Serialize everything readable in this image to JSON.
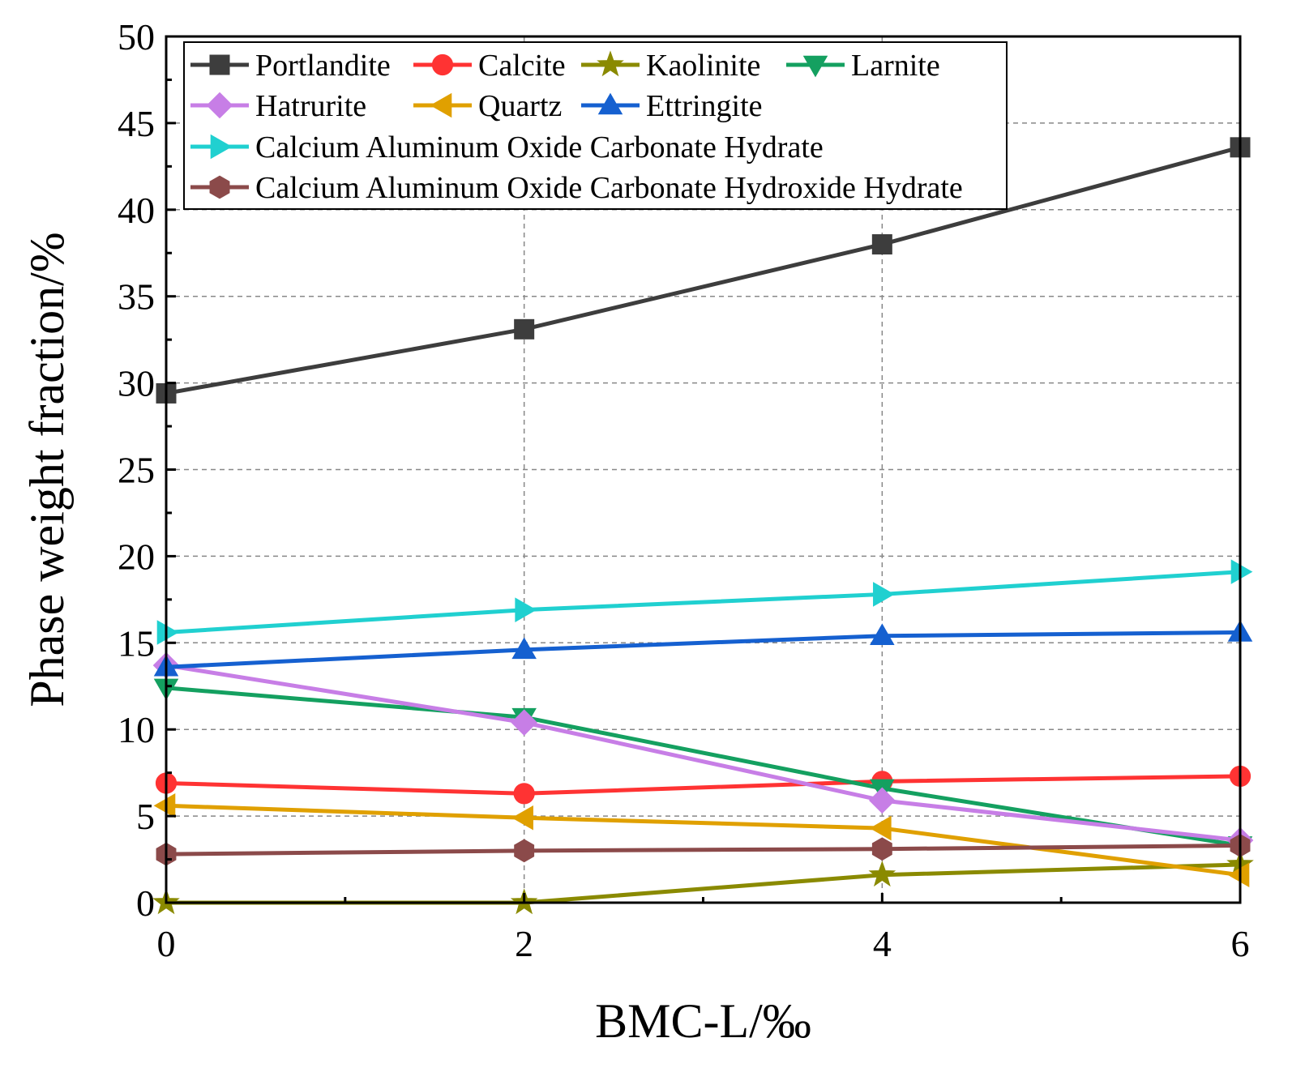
{
  "chart_data": {
    "type": "line",
    "title": "",
    "xlabel": "BMC-L/‰",
    "ylabel": "Phase weight fraction/%",
    "x": [
      0,
      2,
      4,
      6
    ],
    "xlim": [
      0,
      6
    ],
    "ylim": [
      0,
      50
    ],
    "xticks": [
      "0",
      "2",
      "4",
      "6"
    ],
    "yticks": [
      "0",
      "5",
      "10",
      "15",
      "20",
      "25",
      "30",
      "35",
      "40",
      "45",
      "50"
    ],
    "grid": true,
    "legend_position": "top-left",
    "series": [
      {
        "name": "Portlandite",
        "color": "#3d3d3d",
        "marker": "square",
        "values": [
          29.4,
          33.1,
          38.0,
          43.6
        ]
      },
      {
        "name": "Calcite",
        "color": "#ff3333",
        "marker": "circle",
        "values": [
          6.9,
          6.3,
          7.0,
          7.3
        ]
      },
      {
        "name": "Kaolinite",
        "color": "#8a8a00",
        "marker": "star",
        "values": [
          0.0,
          0.0,
          1.6,
          2.2
        ]
      },
      {
        "name": "Larnite",
        "color": "#14a060",
        "marker": "triangle-down",
        "values": [
          12.4,
          10.7,
          6.6,
          3.3
        ]
      },
      {
        "name": "Hatrurite",
        "color": "#c77ee6",
        "marker": "diamond",
        "values": [
          13.7,
          10.4,
          5.9,
          3.6
        ]
      },
      {
        "name": "Quartz",
        "color": "#e0a000",
        "marker": "triangle-left",
        "values": [
          5.6,
          4.9,
          4.3,
          1.6
        ]
      },
      {
        "name": "Ettringite",
        "color": "#1560d0",
        "marker": "triangle-up",
        "values": [
          13.6,
          14.6,
          15.4,
          15.6
        ]
      },
      {
        "name": "Calcium Aluminum Oxide Carbonate Hydrate",
        "color": "#20d0d0",
        "marker": "triangle-right",
        "values": [
          15.6,
          16.9,
          17.8,
          19.1
        ]
      },
      {
        "name": "Calcium Aluminum Oxide Carbonate Hydroxide Hydrate",
        "color": "#8b4a4a",
        "marker": "hexagon",
        "values": [
          2.8,
          3.0,
          3.1,
          3.3
        ]
      }
    ]
  }
}
